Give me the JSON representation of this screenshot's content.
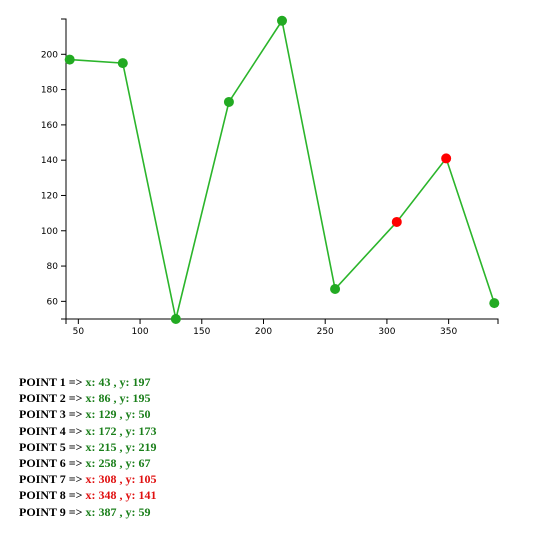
{
  "chart_data": {
    "type": "line",
    "title": "",
    "xlabel": "",
    "ylabel": "",
    "xlim": [
      40,
      390
    ],
    "ylim": [
      50,
      220
    ],
    "x_ticks": [
      50,
      100,
      150,
      200,
      250,
      300,
      350
    ],
    "y_ticks": [
      60,
      80,
      100,
      120,
      140,
      160,
      180,
      200
    ],
    "grid": false,
    "line_color": "#2bb52b",
    "point_color": "#22aa22",
    "highlight_color": "#ff0000",
    "series": [
      {
        "points": [
          {
            "x": 43,
            "y": 197,
            "highlight": false
          },
          {
            "x": 86,
            "y": 195,
            "highlight": false
          },
          {
            "x": 129,
            "y": 50,
            "highlight": false
          },
          {
            "x": 172,
            "y": 173,
            "highlight": false
          },
          {
            "x": 215,
            "y": 219,
            "highlight": false
          },
          {
            "x": 258,
            "y": 67,
            "highlight": false
          },
          {
            "x": 308,
            "y": 105,
            "highlight": true
          },
          {
            "x": 348,
            "y": 141,
            "highlight": true
          },
          {
            "x": 387,
            "y": 59,
            "highlight": false
          }
        ]
      }
    ]
  },
  "points_list": {
    "label_color": "#000000",
    "value_color": "#1a7f1a",
    "highlight_value_color": "#e01010",
    "rows": [
      {
        "prefix": "POINT 1 =>",
        "values": "x: 43 , y: 197",
        "highlight": false
      },
      {
        "prefix": "POINT 2 =>",
        "values": "x: 86 , y: 195",
        "highlight": false
      },
      {
        "prefix": "POINT 3 =>",
        "values": "x: 129 , y: 50",
        "highlight": false
      },
      {
        "prefix": "POINT 4 =>",
        "values": "x: 172 , y: 173",
        "highlight": false
      },
      {
        "prefix": "POINT 5 =>",
        "values": "x: 215 , y: 219",
        "highlight": false
      },
      {
        "prefix": "POINT 6 =>",
        "values": "x: 258 , y: 67",
        "highlight": false
      },
      {
        "prefix": "POINT 7 =>",
        "values": "x: 308 , y: 105",
        "highlight": true
      },
      {
        "prefix": "POINT 8 =>",
        "values": "x: 348 , y: 141",
        "highlight": true
      },
      {
        "prefix": "POINT 9 =>",
        "values": "x: 387 , y: 59",
        "highlight": false
      }
    ]
  }
}
